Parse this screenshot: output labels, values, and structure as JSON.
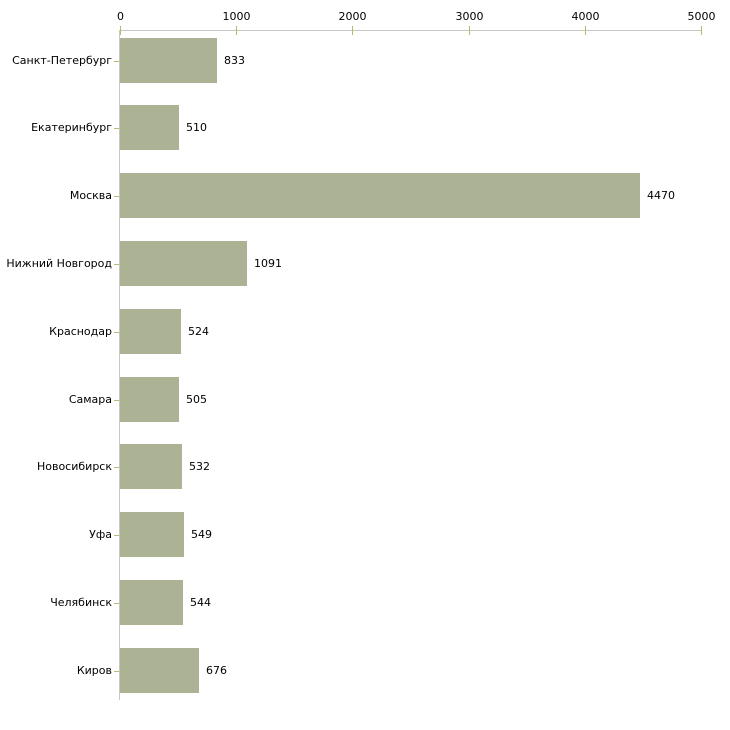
{
  "chart_data": {
    "type": "bar",
    "orientation": "horizontal",
    "title": "",
    "xlabel": "",
    "ylabel": "",
    "categories": [
      "Санкт-Петербург",
      "Екатеринбург",
      "Москва",
      "Нижний Новгород",
      "Краснодар",
      "Самара",
      "Новосибирск",
      "Уфа",
      "Челябинск",
      "Киров"
    ],
    "values": [
      833,
      510,
      4470,
      1091,
      524,
      505,
      532,
      549,
      544,
      676
    ],
    "value_labels": [
      "833",
      "510",
      "4470",
      "1091",
      "524",
      "505",
      "532",
      "549",
      "544",
      "676"
    ],
    "xlim": [
      0,
      5000
    ],
    "x_ticks": [
      0,
      1000,
      2000,
      3000,
      4000,
      5000
    ],
    "x_tick_labels": [
      "0",
      "1000",
      "2000",
      "3000",
      "4000",
      "5000"
    ],
    "axis_position": "top",
    "grid": false,
    "legend": false,
    "colors": {
      "bar": "#acb294",
      "axis_line": "#c6c6c6",
      "tick": "#b9b96e",
      "text": "#000000",
      "background": "#ffffff"
    }
  }
}
